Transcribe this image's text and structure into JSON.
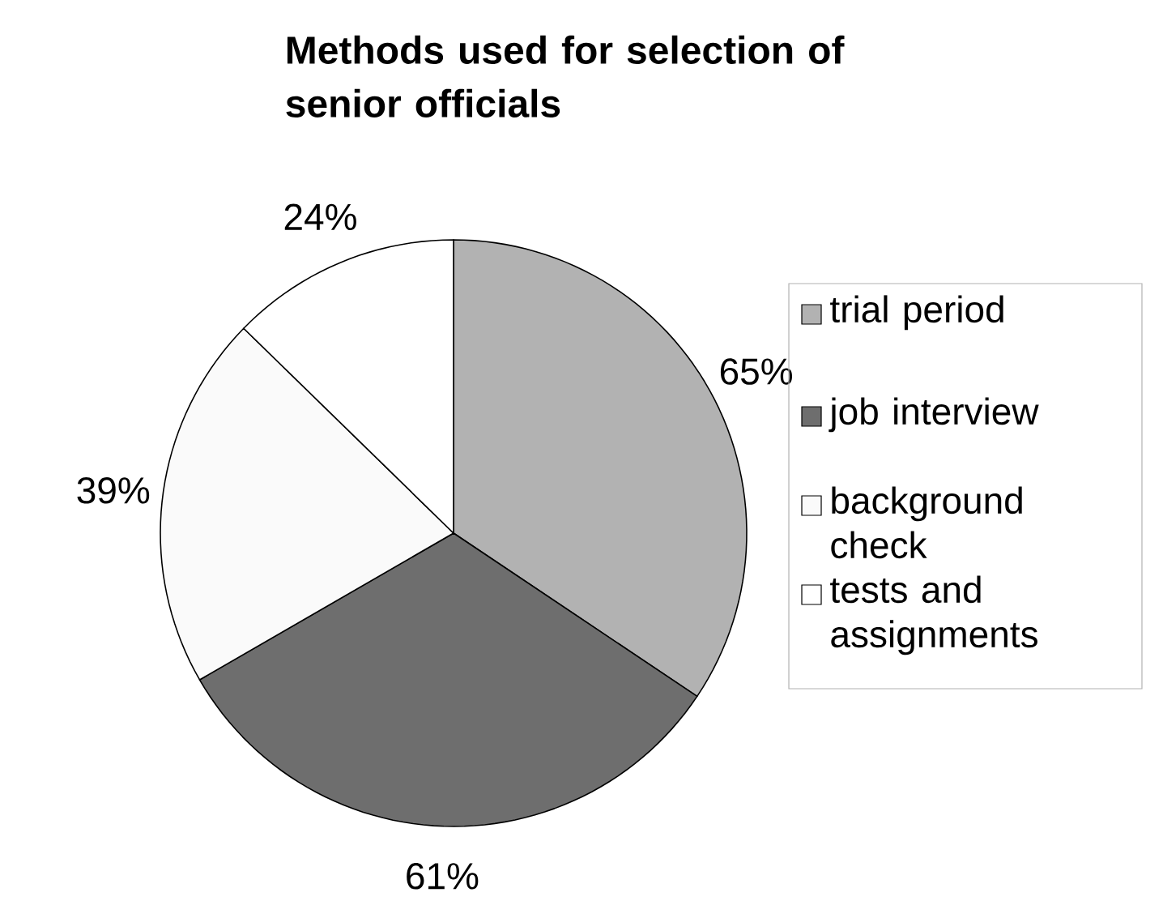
{
  "chart_data": {
    "type": "pie",
    "title": "Methods used for selection of senior officials",
    "categories": [
      "trial period",
      "job interview",
      "background check",
      "tests and assignments"
    ],
    "values": [
      65,
      61,
      39,
      24
    ],
    "colors": [
      "#b2b2b2",
      "#6e6e6e",
      "#fafafa",
      "#ffffff"
    ],
    "value_labels": [
      "65%",
      "61%",
      "39%",
      "24%"
    ],
    "legend": "right"
  }
}
